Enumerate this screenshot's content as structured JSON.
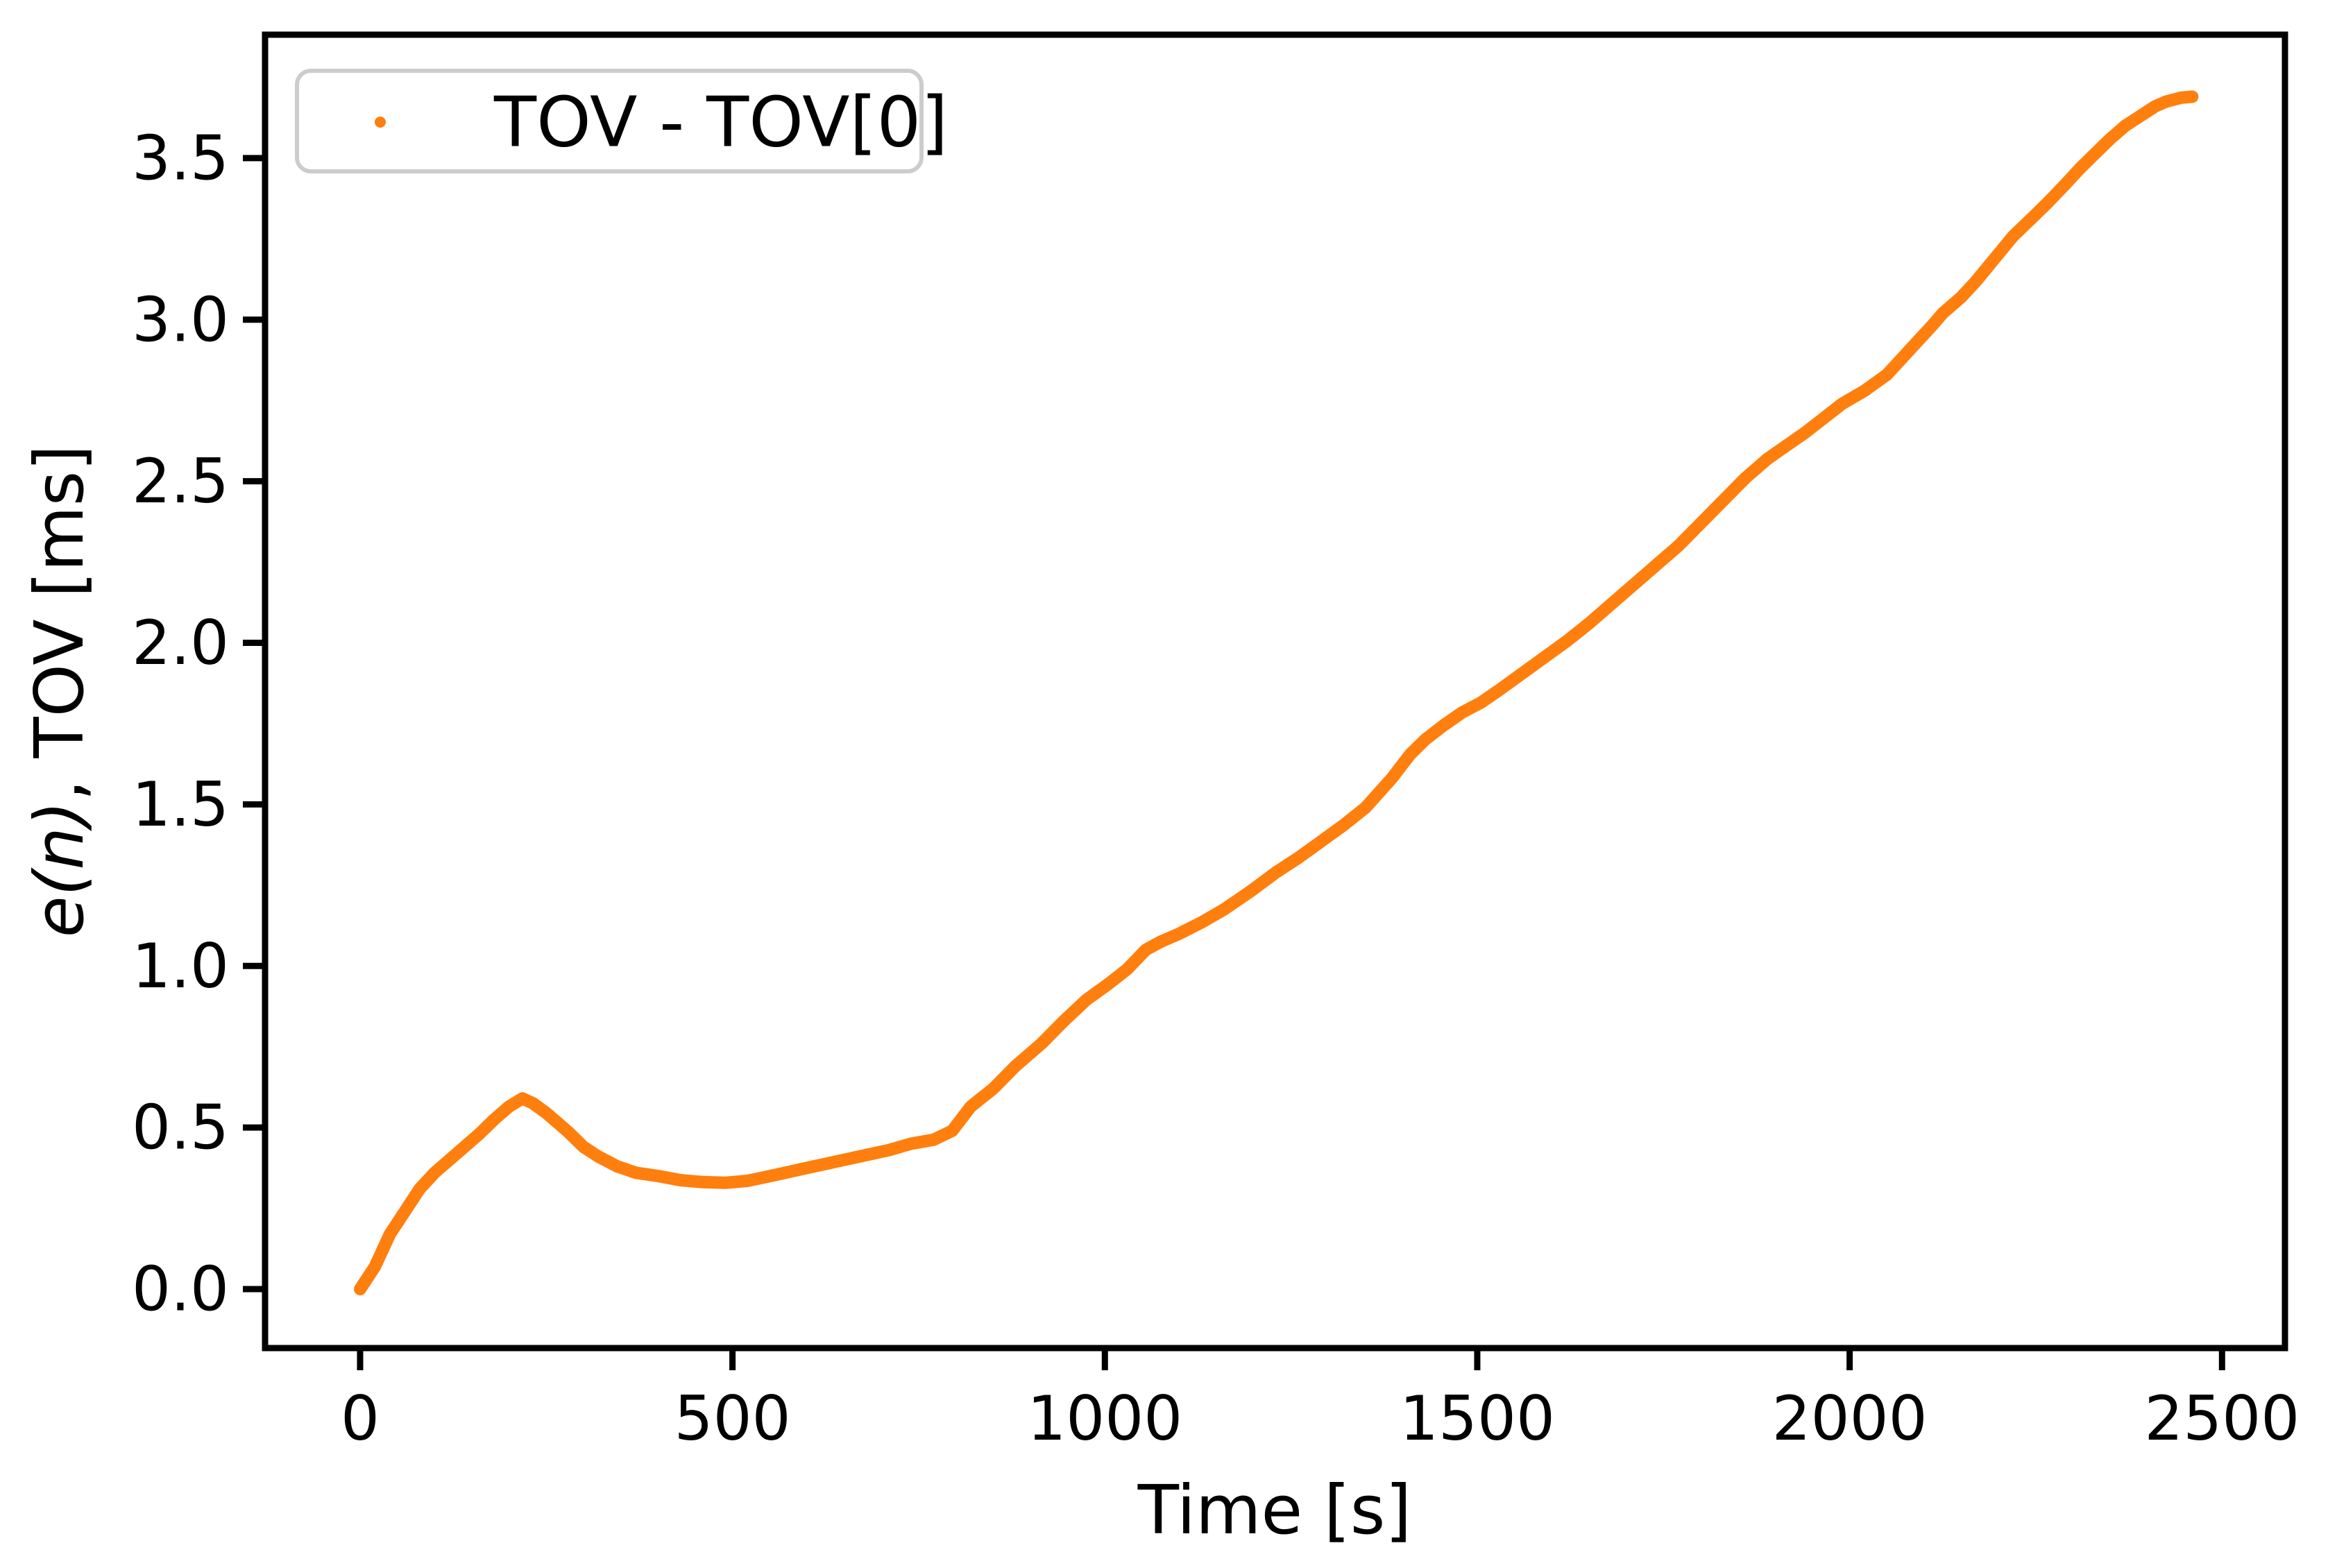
{
  "chart_data": {
    "type": "scatter",
    "title": "",
    "xlabel": "Time [s]",
    "ylabel": "e(n), TOV [ms]",
    "ylabel_parts": [
      {
        "text": "e(n)",
        "italic": true
      },
      {
        "text": ", TOV [ms]",
        "italic": false
      }
    ],
    "xlim": [
      -127.6,
      2584.5
    ],
    "ylim": [
      -0.1825,
      3.882
    ],
    "xticks": [
      "0",
      "500",
      "1000",
      "1500",
      "2000",
      "2500"
    ],
    "xtick_values": [
      0,
      500,
      1000,
      1500,
      2000,
      2500
    ],
    "yticks": [
      "0.0",
      "0.5",
      "1.0",
      "1.5",
      "2.0",
      "2.5",
      "3.0",
      "3.5"
    ],
    "ytick_values": [
      0.0,
      0.5,
      1.0,
      1.5,
      2.0,
      2.5,
      3.0,
      3.5
    ],
    "grid": false,
    "legend": {
      "label": "TOV - TOV[0]",
      "position": "upper left",
      "marker": "dot"
    },
    "series": [
      {
        "name": "TOV - TOV[0]",
        "color": "#ff7f0e",
        "marker": "dot",
        "x_unit": "s",
        "y_unit": "ms",
        "points": [
          [
            0,
            0.0
          ],
          [
            20,
            0.07
          ],
          [
            40,
            0.17
          ],
          [
            60,
            0.24
          ],
          [
            80,
            0.31
          ],
          [
            100,
            0.36
          ],
          [
            120,
            0.4
          ],
          [
            140,
            0.44
          ],
          [
            160,
            0.48
          ],
          [
            180,
            0.525
          ],
          [
            200,
            0.565
          ],
          [
            218,
            0.59
          ],
          [
            232,
            0.575
          ],
          [
            250,
            0.545
          ],
          [
            265,
            0.515
          ],
          [
            280,
            0.485
          ],
          [
            300,
            0.44
          ],
          [
            320,
            0.41
          ],
          [
            345,
            0.38
          ],
          [
            370,
            0.36
          ],
          [
            400,
            0.35
          ],
          [
            430,
            0.337
          ],
          [
            460,
            0.331
          ],
          [
            490,
            0.329
          ],
          [
            520,
            0.335
          ],
          [
            555,
            0.352
          ],
          [
            590,
            0.37
          ],
          [
            620,
            0.385
          ],
          [
            650,
            0.4
          ],
          [
            680,
            0.415
          ],
          [
            710,
            0.43
          ],
          [
            740,
            0.45
          ],
          [
            770,
            0.462
          ],
          [
            795,
            0.49
          ],
          [
            820,
            0.565
          ],
          [
            850,
            0.62
          ],
          [
            880,
            0.69
          ],
          [
            915,
            0.76
          ],
          [
            945,
            0.83
          ],
          [
            975,
            0.895
          ],
          [
            1005,
            0.945
          ],
          [
            1030,
            0.99
          ],
          [
            1055,
            1.05
          ],
          [
            1075,
            1.075
          ],
          [
            1100,
            1.1
          ],
          [
            1130,
            1.135
          ],
          [
            1160,
            1.175
          ],
          [
            1195,
            1.23
          ],
          [
            1230,
            1.29
          ],
          [
            1260,
            1.335
          ],
          [
            1290,
            1.385
          ],
          [
            1320,
            1.435
          ],
          [
            1350,
            1.49
          ],
          [
            1385,
            1.58
          ],
          [
            1410,
            1.655
          ],
          [
            1430,
            1.7
          ],
          [
            1455,
            1.745
          ],
          [
            1480,
            1.785
          ],
          [
            1505,
            1.815
          ],
          [
            1530,
            1.855
          ],
          [
            1560,
            1.905
          ],
          [
            1590,
            1.955
          ],
          [
            1620,
            2.005
          ],
          [
            1650,
            2.06
          ],
          [
            1680,
            2.12
          ],
          [
            1710,
            2.18
          ],
          [
            1740,
            2.24
          ],
          [
            1770,
            2.3
          ],
          [
            1800,
            2.37
          ],
          [
            1830,
            2.44
          ],
          [
            1860,
            2.51
          ],
          [
            1890,
            2.57
          ],
          [
            1915,
            2.61
          ],
          [
            1940,
            2.65
          ],
          [
            1965,
            2.695
          ],
          [
            1990,
            2.74
          ],
          [
            2020,
            2.78
          ],
          [
            2050,
            2.83
          ],
          [
            2070,
            2.88
          ],
          [
            2090,
            2.93
          ],
          [
            2110,
            2.98
          ],
          [
            2125,
            3.02
          ],
          [
            2150,
            3.07
          ],
          [
            2170,
            3.12
          ],
          [
            2195,
            3.19
          ],
          [
            2220,
            3.26
          ],
          [
            2245,
            3.315
          ],
          [
            2265,
            3.36
          ],
          [
            2290,
            3.42
          ],
          [
            2310,
            3.47
          ],
          [
            2330,
            3.515
          ],
          [
            2350,
            3.56
          ],
          [
            2370,
            3.6
          ],
          [
            2390,
            3.63
          ],
          [
            2410,
            3.66
          ],
          [
            2425,
            3.675
          ],
          [
            2445,
            3.687
          ],
          [
            2460,
            3.69
          ]
        ]
      }
    ]
  },
  "style": {
    "series_color": "#ff7f0e",
    "spine_color": "#000000",
    "legend_border_color": "#cccccc",
    "background": "#ffffff"
  }
}
